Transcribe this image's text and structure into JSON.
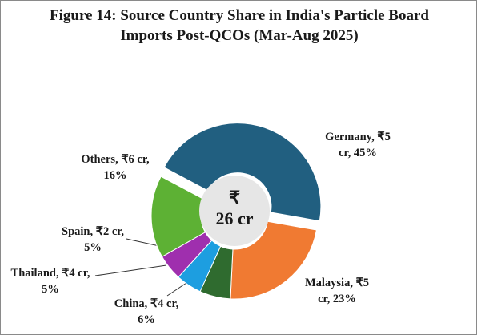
{
  "chart_data": {
    "type": "doughnut",
    "title": "Figure 14: Source Country Share in India's Particle Board Imports Post-QCOs (Mar-Aug 2025)",
    "values": [
      45,
      23,
      6,
      5,
      5,
      16
    ],
    "value_labels": [
      "Germany, ₹5 cr, 45%",
      "Malaysia, ₹5 cr, 23%",
      "China, ₹4 cr, 6%",
      "Thailand, ₹4 cr, 5%",
      "Spain, ₹2 cr, 5%",
      "Others, ₹6 cr, 16%"
    ],
    "colors": [
      "#215f80",
      "#f07a32",
      "#2f6b2f",
      "#1d9ee0",
      "#9f2fae",
      "#5db134"
    ],
    "center_label": [
      "₹",
      "26 cr"
    ]
  }
}
